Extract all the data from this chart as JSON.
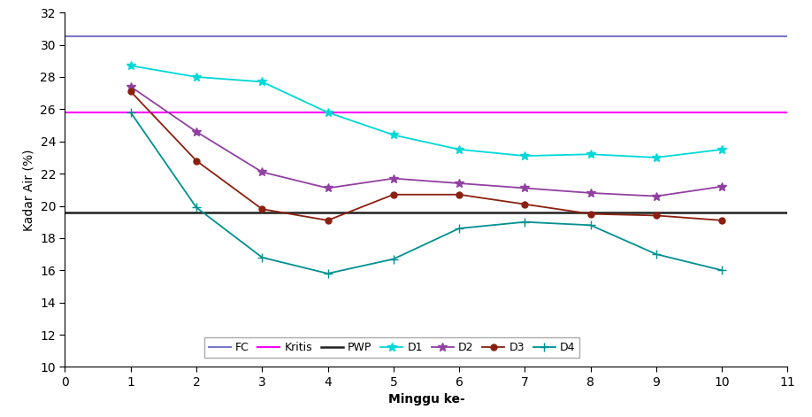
{
  "x": [
    1,
    2,
    3,
    4,
    5,
    6,
    7,
    8,
    9,
    10
  ],
  "FC": 30.5,
  "Kritis": 25.8,
  "PWP": 19.6,
  "D1": [
    28.7,
    28.0,
    27.7,
    25.8,
    24.4,
    23.5,
    23.1,
    23.2,
    23.0,
    23.5
  ],
  "D2": [
    27.4,
    24.6,
    22.1,
    21.1,
    21.7,
    21.4,
    21.1,
    20.8,
    20.6,
    21.2
  ],
  "D3": [
    27.1,
    22.8,
    19.8,
    19.1,
    20.7,
    20.7,
    20.1,
    19.5,
    19.4,
    19.1
  ],
  "D4": [
    25.8,
    19.9,
    16.8,
    15.8,
    16.7,
    18.6,
    19.0,
    18.8,
    17.0,
    16.0
  ],
  "colors": {
    "FC": "#7878c8",
    "Kritis": "#ff00ff",
    "PWP": "#202020",
    "D1": "#00d8d8",
    "D2": "#9040a0",
    "D3": "#8b2010",
    "D4": "#009090"
  },
  "markers": {
    "D1": "*",
    "D2": "*",
    "D3": "o",
    "D4": "+"
  },
  "xlabel": "Minggu ke-",
  "ylabel": "Kadar Air (%)",
  "xlim": [
    0,
    11
  ],
  "ylim": [
    10,
    32
  ],
  "yticks": [
    10,
    12,
    14,
    16,
    18,
    20,
    22,
    24,
    26,
    28,
    30,
    32
  ],
  "xticks": [
    0,
    1,
    2,
    3,
    4,
    5,
    6,
    7,
    8,
    9,
    10,
    11
  ],
  "figsize": [
    9.18,
    4.71
  ],
  "dpi": 100
}
